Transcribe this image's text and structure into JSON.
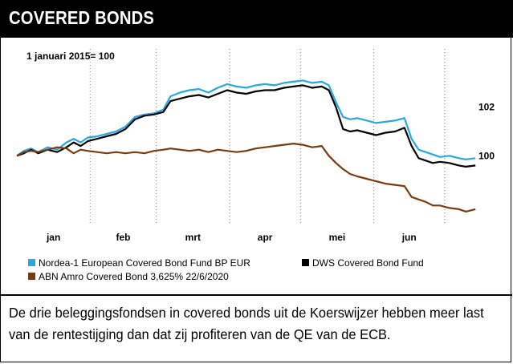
{
  "header": {
    "title": "COVERED BONDS"
  },
  "chart_data": {
    "type": "line",
    "title": "",
    "index_note": "1 januari 2015= 100",
    "x_tick_labels": [
      "jan",
      "feb",
      "mrt",
      "apr",
      "mei",
      "jun"
    ],
    "y_tick_labels": [
      "100",
      "102"
    ],
    "y_ticks": [
      100,
      102
    ],
    "ylim": [
      97.4,
      104.4
    ],
    "x_range_days": [
      1,
      180
    ],
    "grid": "vertical-dotted",
    "legend_position": "bottom",
    "series": [
      {
        "name": "Nordea-1 European Covered Bond Fund BP EUR",
        "color": "#29a8e0",
        "points": [
          [
            1,
            100.0
          ],
          [
            4,
            100.2
          ],
          [
            7,
            100.3
          ],
          [
            10,
            100.15
          ],
          [
            14,
            100.35
          ],
          [
            18,
            100.25
          ],
          [
            22,
            100.55
          ],
          [
            25,
            100.7
          ],
          [
            28,
            100.55
          ],
          [
            31,
            100.75
          ],
          [
            35,
            100.8
          ],
          [
            39,
            100.9
          ],
          [
            43,
            101.0
          ],
          [
            47,
            101.2
          ],
          [
            51,
            101.6
          ],
          [
            55,
            101.7
          ],
          [
            59,
            101.75
          ],
          [
            63,
            101.9
          ],
          [
            66,
            102.45
          ],
          [
            70,
            102.6
          ],
          [
            74,
            102.7
          ],
          [
            78,
            102.75
          ],
          [
            82,
            102.6
          ],
          [
            86,
            102.8
          ],
          [
            90,
            102.95
          ],
          [
            94,
            102.85
          ],
          [
            98,
            102.8
          ],
          [
            102,
            102.9
          ],
          [
            106,
            102.95
          ],
          [
            110,
            102.9
          ],
          [
            114,
            103.0
          ],
          [
            118,
            103.05
          ],
          [
            122,
            103.1
          ],
          [
            126,
            103.0
          ],
          [
            130,
            103.05
          ],
          [
            133,
            102.9
          ],
          [
            136,
            102.2
          ],
          [
            139,
            101.6
          ],
          [
            142,
            101.5
          ],
          [
            145,
            101.55
          ],
          [
            149,
            101.45
          ],
          [
            153,
            101.35
          ],
          [
            157,
            101.4
          ],
          [
            161,
            101.45
          ],
          [
            165,
            101.55
          ],
          [
            168,
            100.7
          ],
          [
            171,
            100.25
          ],
          [
            174,
            100.15
          ],
          [
            177,
            100.05
          ],
          [
            180,
            99.95
          ],
          [
            184,
            100.0
          ],
          [
            188,
            99.9
          ],
          [
            191,
            99.85
          ],
          [
            195,
            99.9
          ]
        ]
      },
      {
        "name": "DWS Covered Bond Fund",
        "color": "#000000",
        "points": [
          [
            1,
            100.0
          ],
          [
            4,
            100.1
          ],
          [
            7,
            100.25
          ],
          [
            10,
            100.1
          ],
          [
            14,
            100.25
          ],
          [
            18,
            100.15
          ],
          [
            22,
            100.35
          ],
          [
            25,
            100.55
          ],
          [
            28,
            100.4
          ],
          [
            31,
            100.6
          ],
          [
            35,
            100.7
          ],
          [
            39,
            100.8
          ],
          [
            43,
            100.9
          ],
          [
            47,
            101.1
          ],
          [
            51,
            101.5
          ],
          [
            55,
            101.65
          ],
          [
            59,
            101.7
          ],
          [
            63,
            101.8
          ],
          [
            66,
            102.25
          ],
          [
            70,
            102.35
          ],
          [
            74,
            102.45
          ],
          [
            78,
            102.5
          ],
          [
            82,
            102.4
          ],
          [
            86,
            102.55
          ],
          [
            90,
            102.7
          ],
          [
            94,
            102.6
          ],
          [
            98,
            102.55
          ],
          [
            102,
            102.65
          ],
          [
            106,
            102.7
          ],
          [
            110,
            102.7
          ],
          [
            114,
            102.8
          ],
          [
            118,
            102.85
          ],
          [
            122,
            102.9
          ],
          [
            126,
            102.8
          ],
          [
            130,
            102.85
          ],
          [
            133,
            102.7
          ],
          [
            136,
            102.0
          ],
          [
            139,
            101.1
          ],
          [
            142,
            101.0
          ],
          [
            145,
            101.05
          ],
          [
            149,
            100.95
          ],
          [
            153,
            100.85
          ],
          [
            157,
            100.95
          ],
          [
            161,
            101.0
          ],
          [
            165,
            101.15
          ],
          [
            168,
            100.4
          ],
          [
            171,
            99.9
          ],
          [
            174,
            99.8
          ],
          [
            177,
            99.7
          ],
          [
            180,
            99.75
          ],
          [
            184,
            99.7
          ],
          [
            188,
            99.6
          ],
          [
            191,
            99.55
          ],
          [
            195,
            99.6
          ]
        ]
      },
      {
        "name": "ABN Amro Covered Bond 3,625% 22/6/2020",
        "color": "#7a3b10",
        "points": [
          [
            1,
            100.0
          ],
          [
            4,
            100.15
          ],
          [
            7,
            100.2
          ],
          [
            10,
            100.15
          ],
          [
            14,
            100.25
          ],
          [
            18,
            100.35
          ],
          [
            22,
            100.3
          ],
          [
            25,
            100.1
          ],
          [
            28,
            100.25
          ],
          [
            31,
            100.2
          ],
          [
            35,
            100.15
          ],
          [
            39,
            100.1
          ],
          [
            43,
            100.15
          ],
          [
            47,
            100.1
          ],
          [
            51,
            100.15
          ],
          [
            55,
            100.1
          ],
          [
            59,
            100.2
          ],
          [
            63,
            100.25
          ],
          [
            66,
            100.3
          ],
          [
            70,
            100.25
          ],
          [
            74,
            100.2
          ],
          [
            78,
            100.25
          ],
          [
            82,
            100.15
          ],
          [
            86,
            100.25
          ],
          [
            90,
            100.2
          ],
          [
            94,
            100.15
          ],
          [
            98,
            100.2
          ],
          [
            102,
            100.3
          ],
          [
            106,
            100.35
          ],
          [
            110,
            100.4
          ],
          [
            114,
            100.45
          ],
          [
            118,
            100.5
          ],
          [
            122,
            100.45
          ],
          [
            126,
            100.35
          ],
          [
            130,
            100.4
          ],
          [
            133,
            100.0
          ],
          [
            136,
            99.7
          ],
          [
            139,
            99.45
          ],
          [
            142,
            99.25
          ],
          [
            145,
            99.15
          ],
          [
            149,
            99.05
          ],
          [
            153,
            98.95
          ],
          [
            157,
            98.85
          ],
          [
            161,
            98.8
          ],
          [
            165,
            98.75
          ],
          [
            168,
            98.3
          ],
          [
            171,
            98.2
          ],
          [
            174,
            98.1
          ],
          [
            177,
            97.95
          ],
          [
            180,
            97.95
          ],
          [
            184,
            97.85
          ],
          [
            188,
            97.8
          ],
          [
            191,
            97.7
          ],
          [
            195,
            97.8
          ]
        ]
      }
    ]
  },
  "caption": {
    "text": "De drie beleggingsfondsen in covered bonds uit de Koerswijzer hebben meer last van de rentestijging dan dat zij profiteren van de QE van de ECB."
  }
}
